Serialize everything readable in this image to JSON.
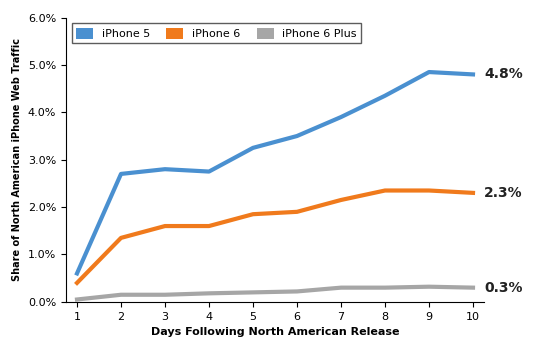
{
  "chart_data": {
    "type": "line",
    "x_label": "Days Following North American Release",
    "y_label": "Share of North American iPhone Web Traffic",
    "x": [
      1,
      2,
      3,
      4,
      5,
      6,
      7,
      8,
      9,
      10
    ],
    "series": [
      {
        "name": "iPhone 5",
        "color": "#4a90d0",
        "values": [
          0.6,
          2.7,
          2.8,
          2.75,
          3.25,
          3.5,
          3.9,
          4.35,
          4.85,
          4.8
        ],
        "value_labels": [
          null,
          null,
          null,
          null,
          null,
          null,
          null,
          null,
          null,
          "4.8%"
        ]
      },
      {
        "name": "iPhone 6",
        "color": "#f07a1c",
        "values": [
          0.4,
          1.35,
          1.6,
          1.6,
          1.85,
          1.9,
          2.15,
          2.35,
          2.35,
          2.3
        ],
        "value_labels": [
          null,
          null,
          null,
          null,
          null,
          null,
          null,
          null,
          null,
          "2.3%"
        ]
      },
      {
        "name": "iPhone 6 Plus",
        "color": "#a6a6a6",
        "values": [
          0.05,
          0.15,
          0.15,
          0.18,
          0.2,
          0.22,
          0.3,
          0.3,
          0.32,
          0.3
        ],
        "value_labels": [
          null,
          null,
          null,
          null,
          null,
          null,
          null,
          null,
          null,
          "0.3%"
        ]
      }
    ],
    "xlim": [
      0.75,
      10.25
    ],
    "xticks": [
      1,
      2,
      3,
      4,
      5,
      6,
      7,
      8,
      9,
      10
    ],
    "ylim": [
      0,
      6
    ],
    "yticks": [
      {
        "value": 0,
        "label": "0.0%"
      },
      {
        "value": 1,
        "label": "1.0%"
      },
      {
        "value": 2,
        "label": "2.0%"
      },
      {
        "value": 3,
        "label": "3.0%"
      },
      {
        "value": 4,
        "label": "4.0%"
      },
      {
        "value": 5,
        "label": "5.0%"
      },
      {
        "value": 6,
        "label": "6.0%"
      }
    ],
    "grid": false,
    "legend": "upper left",
    "data_labels": true
  }
}
